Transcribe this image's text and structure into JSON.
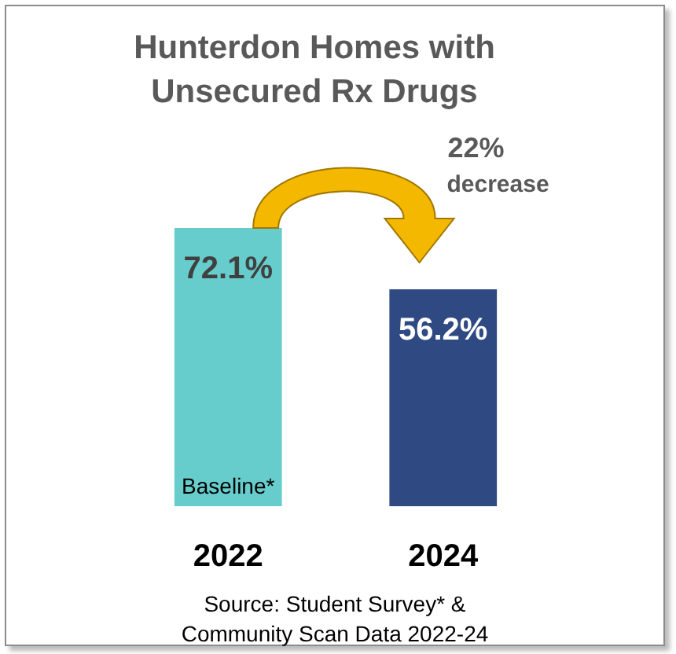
{
  "chart_data": {
    "type": "bar",
    "title": "Hunterdon Homes with Unsecured Rx Drugs",
    "categories": [
      "2022",
      "2024"
    ],
    "values": [
      72.1,
      56.2
    ],
    "value_labels": [
      "72.1%",
      "56.2%"
    ],
    "colors": [
      "#66cccc",
      "#2f4a82"
    ],
    "annotations": [
      "22% decrease",
      {
        "text": "Baseline*",
        "x": "2022",
        "y": 0
      },
      "Source: Student Survey* & Community Scan Data 2022-24"
    ]
  }
}
